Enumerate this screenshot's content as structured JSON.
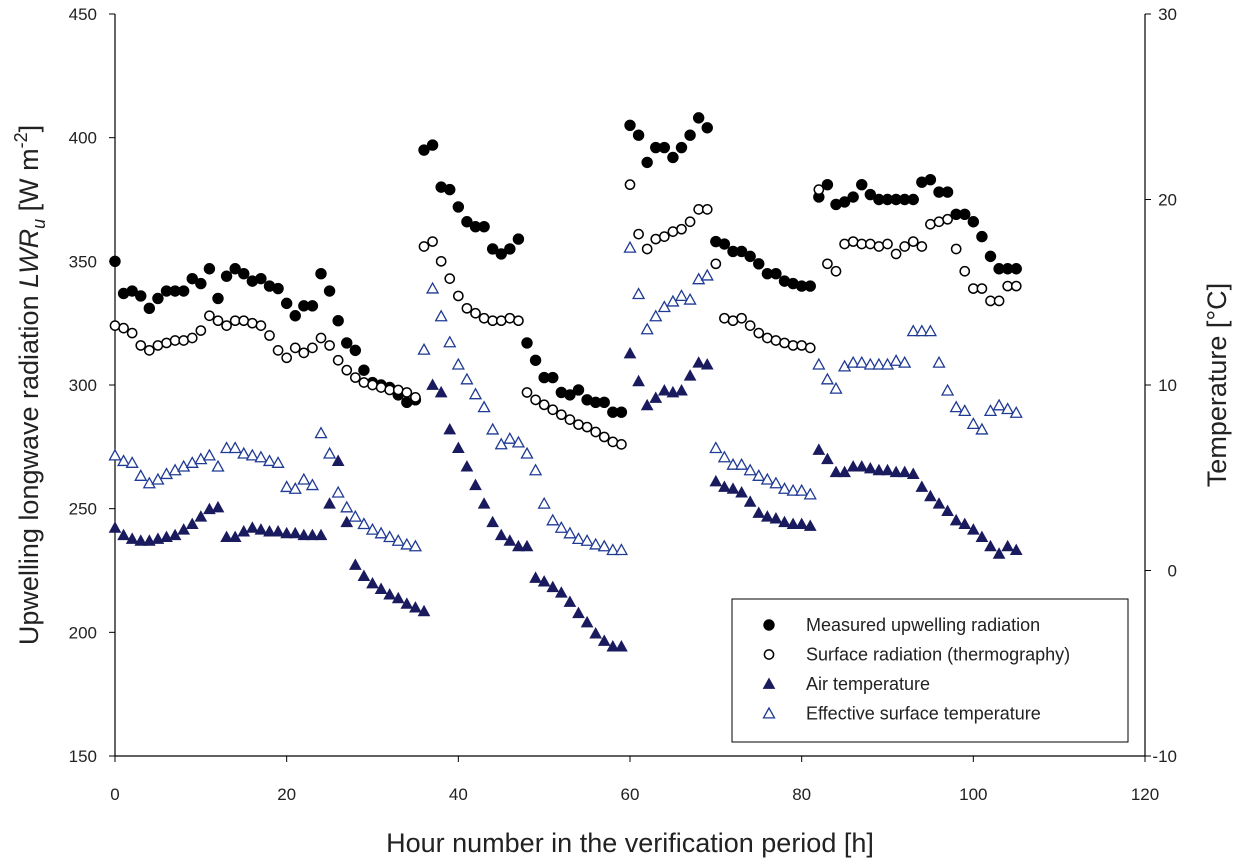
{
  "chart_data": {
    "type": "scatter",
    "title": "",
    "xlabel": "Hour number in the verification period [h]",
    "ylabel_left": {
      "prefix": "Upwelling longwave radiation ",
      "symbol": "LWR",
      "subscript": "u",
      "units_open": " [W m",
      "superscript": "-2",
      "units_close": "]"
    },
    "ylabel_right": "Temperature [°C]",
    "xlim": [
      0,
      120
    ],
    "ylim_left": [
      150,
      450
    ],
    "ylim_right": [
      -10,
      30
    ],
    "xticks": [
      "0",
      "20",
      "40",
      "60",
      "80",
      "100",
      "120"
    ],
    "yticks_left": [
      "150",
      "200",
      "250",
      "300",
      "350",
      "400",
      "450"
    ],
    "yticks_right": [
      "-10",
      "0",
      "10",
      "20",
      "30"
    ],
    "grid": false,
    "legend_position": "bottom-right",
    "series": [
      {
        "name": "Measured upwelling radiation",
        "axis": "left",
        "marker": "filled-circle",
        "color": "#000000",
        "x": [
          0,
          1,
          2,
          3,
          4,
          5,
          6,
          7,
          8,
          9,
          10,
          11,
          12,
          13,
          14,
          15,
          16,
          17,
          18,
          19,
          20,
          21,
          22,
          23,
          24,
          25,
          26,
          27,
          28,
          29,
          30,
          31,
          32,
          33,
          34,
          35,
          36,
          37,
          38,
          39,
          40,
          41,
          42,
          43,
          44,
          45,
          46,
          47,
          48,
          49,
          50,
          51,
          52,
          53,
          54,
          55,
          56,
          57,
          58,
          59,
          60,
          61,
          62,
          63,
          64,
          65,
          66,
          67,
          68,
          69,
          70,
          71,
          72,
          73,
          74,
          75,
          76,
          77,
          78,
          79,
          80,
          81,
          82,
          83,
          84,
          85,
          86,
          87,
          88,
          89,
          90,
          91,
          92,
          93,
          94,
          95,
          96,
          97,
          98,
          99,
          100,
          101,
          102,
          103,
          104,
          105
        ],
        "y": [
          350,
          337,
          338,
          336,
          331,
          335,
          338,
          338,
          338,
          343,
          341,
          347,
          335,
          344,
          347,
          345,
          342,
          343,
          340,
          339,
          333,
          328,
          332,
          332,
          345,
          338,
          326,
          317,
          314,
          306,
          301,
          300,
          299,
          296,
          293,
          294,
          395,
          397,
          380,
          379,
          372,
          366,
          364,
          364,
          355,
          353,
          355,
          359,
          317,
          310,
          303,
          303,
          297,
          296,
          298,
          294,
          293,
          293,
          289,
          289,
          405,
          401,
          390,
          396,
          396,
          392,
          396,
          401,
          408,
          404,
          358,
          357,
          354,
          354,
          352,
          349,
          345,
          345,
          342,
          341,
          340,
          340,
          376,
          381,
          373,
          374,
          376,
          381,
          377,
          375,
          375,
          375,
          375,
          375,
          382,
          383,
          378,
          378,
          369,
          369,
          366,
          360,
          352,
          347,
          347,
          347
        ]
      },
      {
        "name": "Surface radiation (thermography)",
        "axis": "left",
        "marker": "open-circle",
        "color": "#000000",
        "x": [
          0,
          1,
          2,
          3,
          4,
          5,
          6,
          7,
          8,
          9,
          10,
          11,
          12,
          13,
          14,
          15,
          16,
          17,
          18,
          19,
          20,
          21,
          22,
          23,
          24,
          25,
          26,
          27,
          28,
          29,
          30,
          31,
          32,
          33,
          34,
          35,
          36,
          37,
          38,
          39,
          40,
          41,
          42,
          43,
          44,
          45,
          46,
          47,
          48,
          49,
          50,
          51,
          52,
          53,
          54,
          55,
          56,
          57,
          58,
          59,
          60,
          61,
          62,
          63,
          64,
          65,
          66,
          67,
          68,
          69,
          70,
          71,
          72,
          73,
          74,
          75,
          76,
          77,
          78,
          79,
          80,
          81,
          82,
          83,
          84,
          85,
          86,
          87,
          88,
          89,
          90,
          91,
          92,
          93,
          94,
          95,
          96,
          97,
          98,
          99,
          100,
          101,
          102,
          103,
          104,
          105
        ],
        "y": [
          324,
          323,
          321,
          316,
          314,
          316,
          317,
          318,
          318,
          319,
          322,
          328,
          326,
          324,
          326,
          326,
          325,
          324,
          320,
          314,
          311,
          315,
          313,
          315,
          319,
          316,
          310,
          306,
          303,
          301,
          300,
          299,
          298,
          298,
          297,
          295,
          356,
          358,
          350,
          343,
          336,
          331,
          329,
          327,
          326,
          326,
          327,
          326,
          297,
          294,
          292,
          290,
          288,
          286,
          284,
          283,
          281,
          279,
          277,
          276,
          381,
          361,
          355,
          359,
          360,
          362,
          363,
          366,
          371,
          371,
          349,
          327,
          326,
          327,
          324,
          321,
          319,
          318,
          317,
          316,
          316,
          315,
          379,
          349,
          346,
          357,
          358,
          357,
          357,
          356,
          357,
          353,
          356,
          358,
          356,
          365,
          366,
          367,
          355,
          346,
          339,
          339,
          334,
          334,
          340,
          340
        ]
      },
      {
        "name": "Air temperature",
        "axis": "right",
        "marker": "filled-triangle",
        "color": "#1a1a5e",
        "x": [
          0,
          1,
          2,
          3,
          4,
          5,
          6,
          7,
          8,
          9,
          10,
          11,
          12,
          13,
          14,
          15,
          16,
          17,
          18,
          19,
          20,
          21,
          22,
          23,
          24,
          25,
          26,
          27,
          28,
          29,
          30,
          31,
          32,
          33,
          34,
          35,
          36,
          37,
          38,
          39,
          40,
          41,
          42,
          43,
          44,
          45,
          46,
          47,
          48,
          49,
          50,
          51,
          52,
          53,
          54,
          55,
          56,
          57,
          58,
          59,
          60,
          61,
          62,
          63,
          64,
          65,
          66,
          67,
          68,
          69,
          70,
          71,
          72,
          73,
          74,
          75,
          76,
          77,
          78,
          79,
          80,
          81,
          82,
          83,
          84,
          85,
          86,
          87,
          88,
          89,
          90,
          91,
          92,
          93,
          94,
          95,
          96,
          97,
          98,
          99,
          100,
          101,
          102,
          103,
          104,
          105
        ],
        "y": [
          2.3,
          1.9,
          1.7,
          1.6,
          1.6,
          1.7,
          1.8,
          1.9,
          2.2,
          2.5,
          2.9,
          3.3,
          3.4,
          1.8,
          1.8,
          2.1,
          2.3,
          2.2,
          2.1,
          2.1,
          2.0,
          2.0,
          1.9,
          1.9,
          1.9,
          3.6,
          5.9,
          2.6,
          0.3,
          -0.3,
          -0.7,
          -1.0,
          -1.3,
          -1.5,
          -1.8,
          -2.0,
          -2.2,
          10.0,
          9.6,
          7.6,
          6.6,
          5.6,
          4.6,
          3.6,
          2.6,
          1.9,
          1.6,
          1.3,
          1.3,
          -0.4,
          -0.6,
          -0.9,
          -1.2,
          -1.7,
          -2.3,
          -2.8,
          -3.4,
          -3.8,
          -4.1,
          -4.1,
          11.7,
          10.2,
          8.9,
          9.3,
          9.7,
          9.6,
          9.7,
          10.5,
          11.2,
          11.1,
          4.8,
          4.5,
          4.4,
          4.2,
          3.7,
          3.1,
          2.9,
          2.8,
          2.6,
          2.5,
          2.5,
          2.4,
          6.5,
          6.0,
          5.3,
          5.3,
          5.6,
          5.6,
          5.5,
          5.4,
          5.4,
          5.3,
          5.3,
          5.2,
          4.5,
          4.0,
          3.6,
          3.2,
          2.7,
          2.5,
          2.2,
          1.8,
          1.3,
          0.9,
          1.3,
          1.1
        ]
      },
      {
        "name": "Effective surface temperature",
        "axis": "right",
        "marker": "open-triangle",
        "color": "#1f3a93",
        "x": [
          0,
          1,
          2,
          3,
          4,
          5,
          6,
          7,
          8,
          9,
          10,
          11,
          12,
          13,
          14,
          15,
          16,
          17,
          18,
          19,
          20,
          21,
          22,
          23,
          24,
          25,
          26,
          27,
          28,
          29,
          30,
          31,
          32,
          33,
          34,
          35,
          36,
          37,
          38,
          39,
          40,
          41,
          42,
          43,
          44,
          45,
          46,
          47,
          48,
          49,
          50,
          51,
          52,
          53,
          54,
          55,
          56,
          57,
          58,
          59,
          60,
          61,
          62,
          63,
          64,
          65,
          66,
          67,
          68,
          69,
          70,
          71,
          72,
          73,
          74,
          75,
          76,
          77,
          78,
          79,
          80,
          81,
          82,
          83,
          84,
          85,
          86,
          87,
          88,
          89,
          90,
          91,
          92,
          93,
          94,
          95,
          96,
          97,
          98,
          99,
          100,
          101,
          102,
          103,
          104,
          105
        ],
        "y": [
          6.2,
          5.9,
          5.8,
          5.1,
          4.7,
          4.9,
          5.2,
          5.4,
          5.6,
          5.8,
          6.0,
          6.2,
          5.6,
          6.6,
          6.6,
          6.3,
          6.2,
          6.1,
          5.9,
          5.8,
          4.5,
          4.4,
          4.9,
          4.6,
          7.4,
          6.3,
          4.2,
          3.4,
          2.9,
          2.5,
          2.2,
          2.0,
          1.8,
          1.6,
          1.4,
          1.3,
          11.9,
          15.2,
          13.7,
          12.3,
          11.1,
          10.3,
          9.5,
          8.8,
          7.6,
          6.8,
          7.1,
          6.9,
          6.3,
          5.4,
          3.6,
          2.7,
          2.3,
          2.0,
          1.7,
          1.6,
          1.4,
          1.3,
          1.1,
          1.1,
          17.4,
          14.9,
          13.0,
          13.7,
          14.2,
          14.5,
          14.8,
          14.6,
          15.7,
          15.9,
          6.6,
          6.1,
          5.7,
          5.7,
          5.4,
          5.1,
          4.9,
          4.7,
          4.4,
          4.3,
          4.3,
          4.1,
          11.1,
          10.3,
          9.8,
          11.0,
          11.2,
          11.2,
          11.1,
          11.1,
          11.1,
          11.3,
          11.2,
          12.9,
          12.9,
          12.9,
          11.2,
          9.7,
          8.8,
          8.6,
          7.9,
          7.6,
          8.6,
          8.9,
          8.7,
          8.5
        ]
      }
    ]
  }
}
